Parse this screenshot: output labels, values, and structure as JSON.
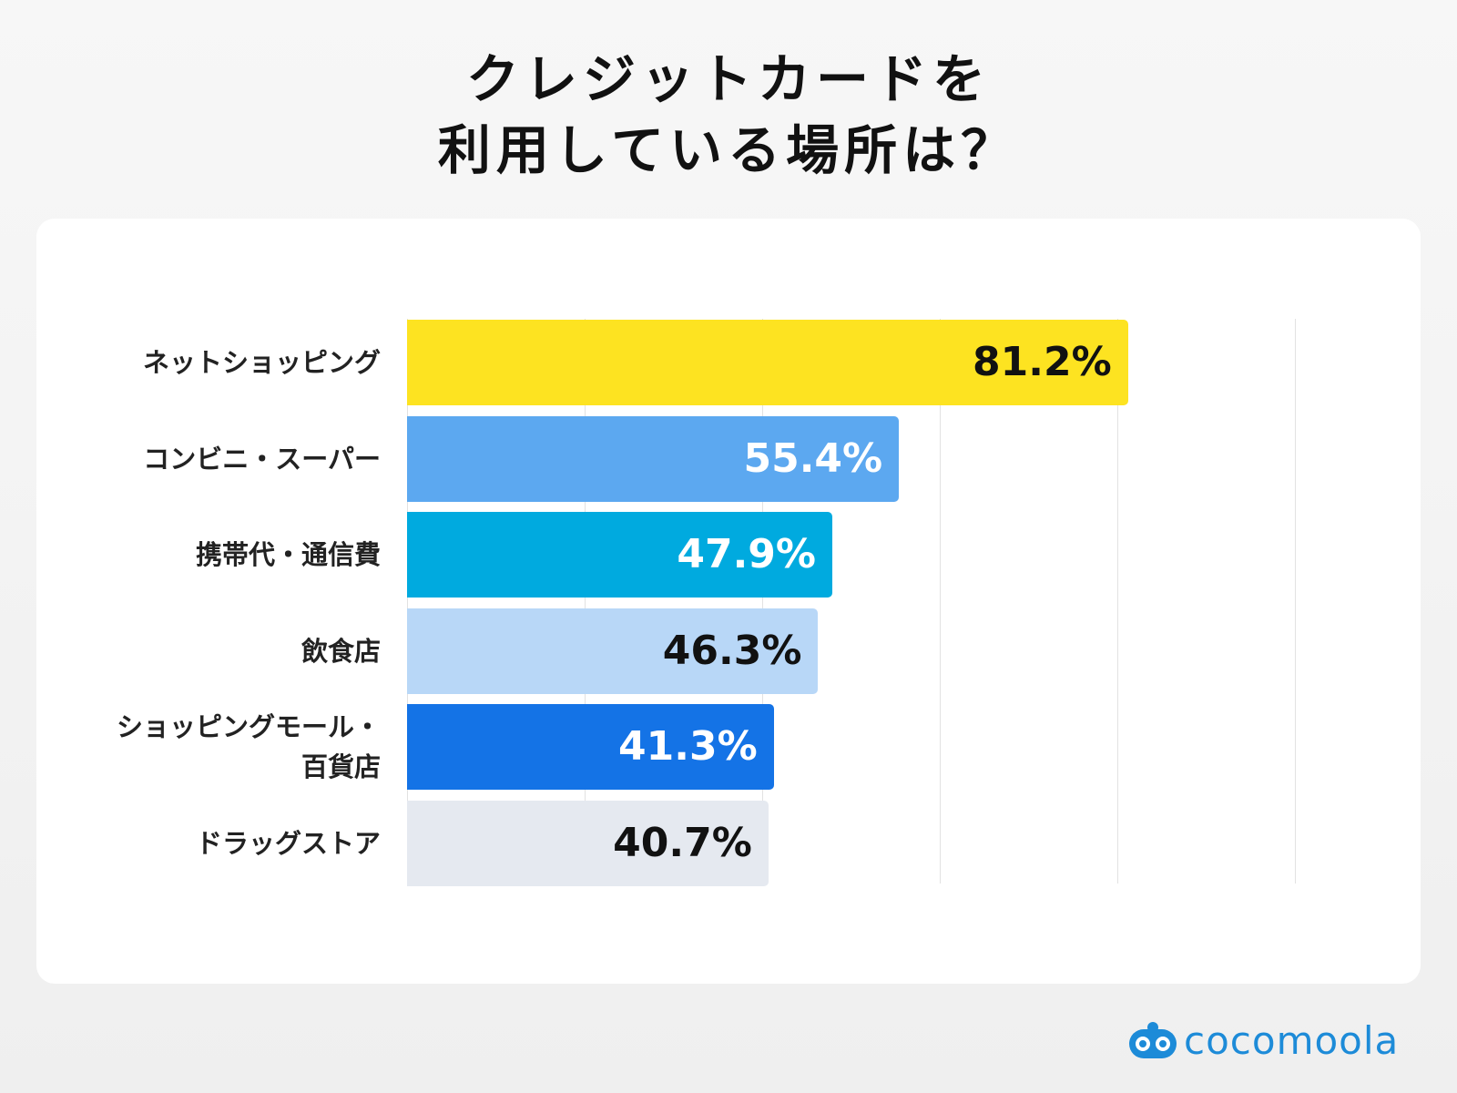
{
  "chart_data": {
    "type": "bar",
    "orientation": "horizontal",
    "title": "クレジットカードを\n利用している場所は？",
    "categories": [
      "ネットショッピング",
      "コンビニ・スーパー",
      "携帯代・通信費",
      "飲食店",
      "ショッピングモール・\n百貨店",
      "ドラッグストア"
    ],
    "values": [
      81.2,
      55.4,
      47.9,
      46.3,
      41.3,
      40.7
    ],
    "value_labels": [
      "81.2%",
      "55.4%",
      "47.9%",
      "46.3%",
      "41.3%",
      "40.7%"
    ],
    "colors": [
      "#fde321",
      "#5ca8f0",
      "#00aadf",
      "#b8d7f7",
      "#1473e6",
      "#e5e9f0"
    ],
    "label_colors": [
      "#111111",
      "#ffffff",
      "#ffffff",
      "#111111",
      "#ffffff",
      "#111111"
    ],
    "xlim": [
      0,
      100
    ],
    "xticks": [
      0,
      20,
      40,
      60,
      80,
      100
    ],
    "grid": true
  },
  "logo": "cocomoola"
}
